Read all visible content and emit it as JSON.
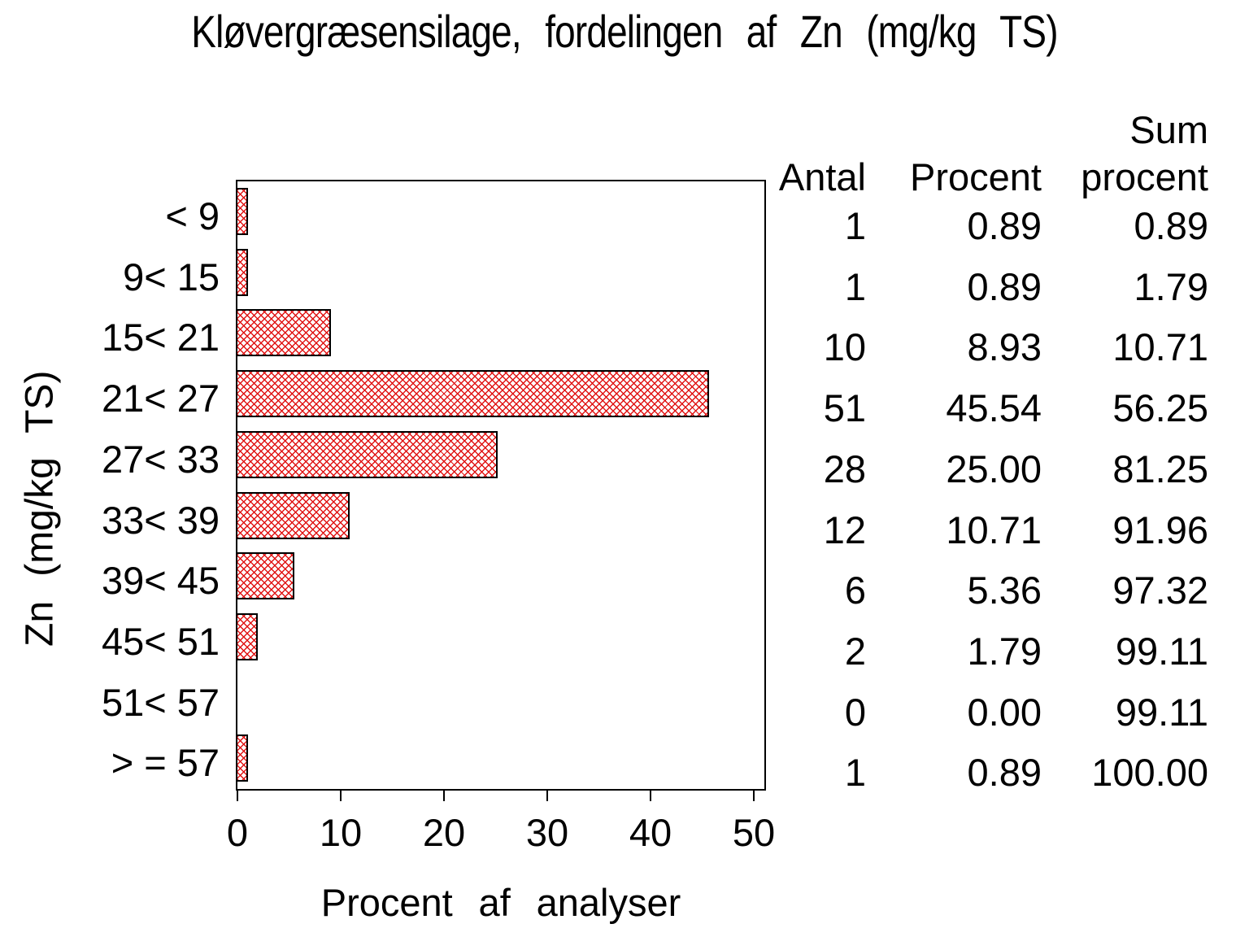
{
  "chart_data": {
    "type": "bar",
    "orientation": "horizontal",
    "title": "Kløvergræsensilage,  fordelingen  af  Zn  (mg/kg  TS)",
    "xlabel": "Procent  af  analyser",
    "ylabel": "Zn  (mg/kg  TS)",
    "categories": [
      "< 9",
      "9< 15",
      "15< 21",
      "21< 27",
      "27< 33",
      "33< 39",
      "39< 45",
      "45< 51",
      "51< 57",
      "> = 57"
    ],
    "values": [
      0.89,
      0.89,
      8.93,
      45.54,
      25.0,
      10.71,
      5.36,
      1.79,
      0.0,
      0.89
    ],
    "xlim": [
      0,
      51
    ],
    "xticks": [
      "0",
      "10",
      "20",
      "30",
      "40",
      "50"
    ],
    "grid": false,
    "legend": "none",
    "colors": {
      "hatch_red": "#e01414",
      "bar_border": "#000000",
      "axis": "#000000",
      "text": "#000000",
      "background": "#ffffff"
    },
    "bar_style": "red diagonal crosshatch on white"
  },
  "table": {
    "header": {
      "antal": "Antal",
      "procent": "Procent",
      "sum_line1": "Sum",
      "sum_line2": "procent"
    },
    "rows": [
      {
        "antal": "1",
        "procent": "0.89",
        "sum": "0.89"
      },
      {
        "antal": "1",
        "procent": "0.89",
        "sum": "1.79"
      },
      {
        "antal": "10",
        "procent": "8.93",
        "sum": "10.71"
      },
      {
        "antal": "51",
        "procent": "45.54",
        "sum": "56.25"
      },
      {
        "antal": "28",
        "procent": "25.00",
        "sum": "81.25"
      },
      {
        "antal": "12",
        "procent": "10.71",
        "sum": "91.96"
      },
      {
        "antal": "6",
        "procent": "5.36",
        "sum": "97.32"
      },
      {
        "antal": "2",
        "procent": "1.79",
        "sum": "99.11"
      },
      {
        "antal": "0",
        "procent": "0.00",
        "sum": "99.11"
      },
      {
        "antal": "1",
        "procent": "0.89",
        "sum": "100.00"
      }
    ]
  }
}
